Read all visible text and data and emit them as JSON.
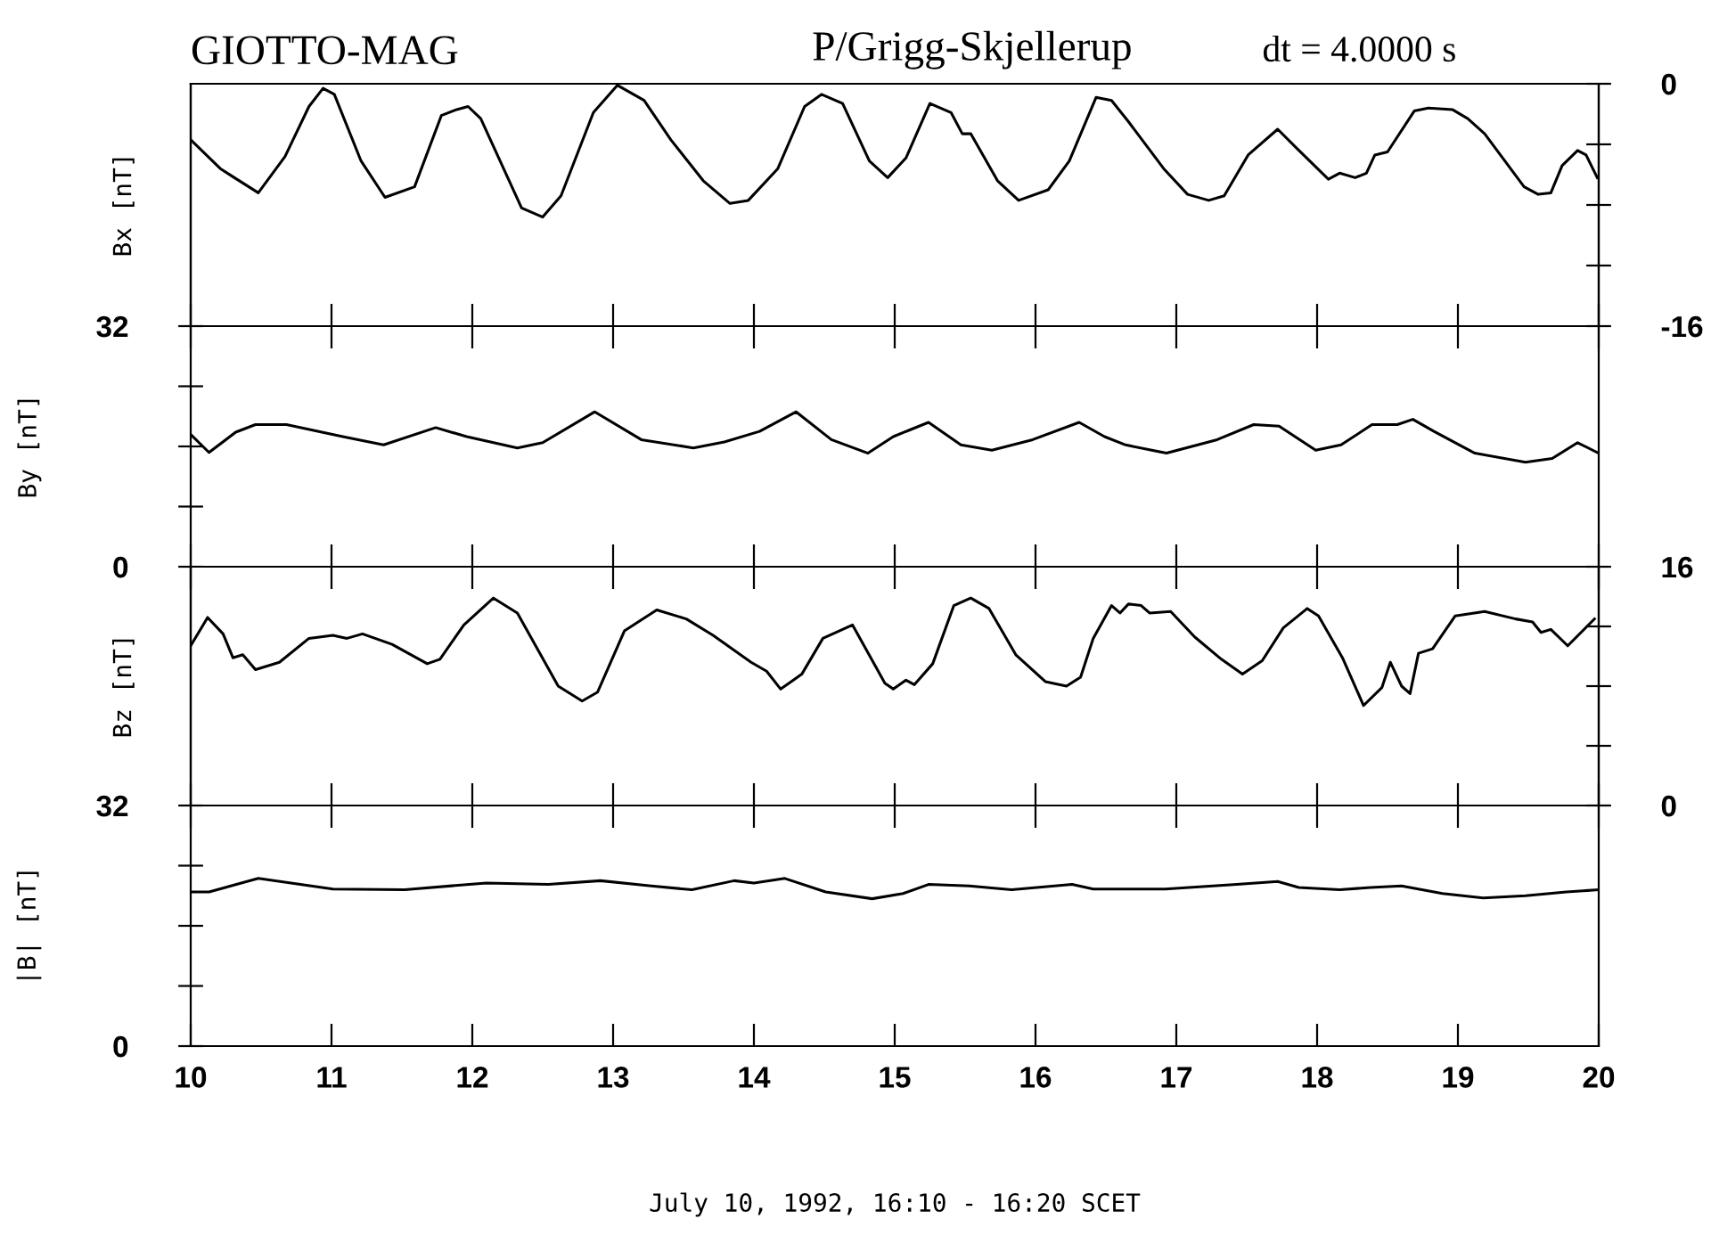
{
  "chart_data": [
    {
      "type": "line",
      "title": "GIOTTO-MAG",
      "subtitle": "P/Grigg-Skjellerup",
      "annotations": [
        "dt = 4.0000 s"
      ],
      "ylabel": "Bx [nT]",
      "tick_labels": "y",
      "xlim": [
        10,
        20
      ],
      "xticks": [
        10,
        11,
        12,
        13,
        14,
        15,
        16,
        17,
        18,
        19,
        20
      ],
      "y2lim": [
        -16,
        0
      ],
      "y2ticks": [
        -16,
        {
          "value": -12,
          "label": null
        },
        {
          "value": -8,
          "label": null
        },
        {
          "value": -4,
          "label": null
        },
        0
      ],
      "series": [
        {
          "color": "#000000",
          "axis": "y2",
          "x": [
            10.0,
            10.21,
            10.31,
            10.48,
            10.67,
            10.84,
            10.94,
            11.02,
            11.21,
            11.38,
            11.59,
            11.78,
            11.89,
            11.97,
            12.06,
            12.35,
            12.5,
            12.63,
            12.86,
            13.03,
            13.22,
            13.41,
            13.64,
            13.83,
            13.96,
            14.17,
            14.36,
            14.48,
            14.63,
            14.82,
            14.95,
            15.08,
            15.25,
            15.4,
            15.48,
            15.54,
            15.73,
            15.88,
            16.09,
            16.24,
            16.43,
            16.54,
            16.66,
            16.91,
            17.08,
            17.23,
            17.34,
            17.51,
            17.72,
            17.86,
            18.08,
            18.16,
            18.27,
            18.35,
            18.41,
            18.5,
            18.69,
            18.79,
            18.96,
            19.07,
            19.19,
            19.47,
            19.57,
            19.66,
            19.74,
            19.85,
            19.91,
            19.99
          ],
          "values": [
            -3.7,
            -5.6,
            -6.2,
            -7.2,
            -4.8,
            -1.5,
            -0.3,
            -0.7,
            -5.1,
            -7.5,
            -6.8,
            -2.1,
            -1.7,
            -1.5,
            -2.3,
            -8.2,
            -8.8,
            -7.4,
            -1.9,
            -0.1,
            -1.1,
            -3.7,
            -6.4,
            -7.9,
            -7.7,
            -5.6,
            -1.5,
            -0.7,
            -1.3,
            -5.1,
            -6.2,
            -4.9,
            -1.3,
            -1.9,
            -3.3,
            -3.3,
            -6.4,
            -7.7,
            -7.0,
            -5.1,
            -0.9,
            -1.1,
            -2.5,
            -5.6,
            -7.3,
            -7.7,
            -7.4,
            -4.7,
            -3.0,
            -4.3,
            -6.3,
            -5.9,
            -6.2,
            -5.9,
            -4.7,
            -4.5,
            -1.8,
            -1.6,
            -1.7,
            -2.3,
            -3.3,
            -6.8,
            -7.3,
            -7.2,
            -5.4,
            -4.4,
            -4.7,
            -6.2
          ]
        }
      ]
    },
    {
      "type": "line",
      "ylabel": "By [nT]",
      "tick_labels": "y",
      "xlim": [
        10,
        20
      ],
      "xticks": [
        10,
        11,
        12,
        13,
        14,
        15,
        16,
        17,
        18,
        19,
        20
      ],
      "ylim": [
        0,
        32
      ],
      "yticks": [
        0,
        {
          "value": 8,
          "label": null
        },
        {
          "value": 16,
          "label": null
        },
        {
          "value": 24,
          "label": null
        },
        32
      ],
      "series": [
        {
          "color": "#000000",
          "x": [
            10.0,
            10.13,
            10.32,
            10.46,
            10.68,
            11.08,
            11.37,
            11.74,
            11.96,
            12.32,
            12.5,
            12.87,
            13.2,
            13.57,
            13.79,
            14.04,
            14.3,
            14.55,
            14.81,
            14.99,
            15.24,
            15.47,
            15.69,
            15.98,
            16.31,
            16.49,
            16.64,
            16.93,
            17.29,
            17.55,
            17.73,
            17.99,
            18.17,
            18.39,
            18.57,
            18.68,
            18.83,
            19.12,
            19.48,
            19.67,
            19.85,
            20.0
          ],
          "values": [
            17.6,
            15.2,
            17.9,
            18.9,
            18.9,
            17.3,
            16.2,
            18.5,
            17.3,
            15.8,
            16.5,
            20.6,
            16.9,
            15.8,
            16.6,
            18.0,
            20.6,
            16.9,
            15.1,
            17.3,
            19.2,
            16.2,
            15.5,
            16.9,
            19.2,
            17.3,
            16.2,
            15.1,
            16.9,
            18.9,
            18.7,
            15.5,
            16.2,
            18.9,
            18.9,
            19.6,
            18.0,
            15.1,
            13.9,
            14.4,
            16.5,
            15.1
          ]
        }
      ]
    },
    {
      "type": "line",
      "ylabel": "Bz [nT]",
      "tick_labels": "y",
      "xlim": [
        10,
        20
      ],
      "xticks": [
        10,
        11,
        12,
        13,
        14,
        15,
        16,
        17,
        18,
        19,
        20
      ],
      "y2lim": [
        0,
        16
      ],
      "y2ticks": [
        0,
        {
          "value": 4,
          "label": null
        },
        {
          "value": 8,
          "label": null
        },
        {
          "value": 12,
          "label": null
        },
        16
      ],
      "series": [
        {
          "color": "#000000",
          "axis": "y2",
          "x": [
            10.0,
            10.12,
            10.23,
            10.3,
            10.37,
            10.46,
            10.63,
            10.84,
            11.01,
            11.11,
            11.22,
            11.43,
            11.68,
            11.77,
            11.94,
            12.15,
            12.32,
            12.61,
            12.78,
            12.89,
            13.08,
            13.31,
            13.52,
            13.71,
            13.98,
            14.09,
            14.19,
            14.34,
            14.49,
            14.7,
            14.93,
            14.99,
            15.08,
            15.14,
            15.27,
            15.42,
            15.54,
            15.67,
            15.86,
            16.07,
            16.22,
            16.32,
            16.41,
            16.54,
            16.6,
            16.66,
            16.75,
            16.81,
            16.96,
            17.13,
            17.32,
            17.47,
            17.61,
            17.76,
            17.93,
            18.01,
            18.18,
            18.33,
            18.46,
            18.52,
            18.6,
            18.66,
            18.72,
            18.82,
            18.98,
            19.19,
            19.41,
            19.53,
            19.59,
            19.66,
            19.78,
            19.97
          ],
          "values": [
            10.7,
            12.6,
            11.5,
            9.9,
            10.1,
            9.1,
            9.6,
            11.2,
            11.4,
            11.2,
            11.5,
            10.8,
            9.5,
            9.8,
            12.1,
            13.9,
            12.9,
            8.0,
            7.0,
            7.6,
            11.7,
            13.1,
            12.5,
            11.4,
            9.6,
            9.0,
            7.8,
            8.8,
            11.2,
            12.1,
            8.2,
            7.8,
            8.4,
            8.1,
            9.5,
            13.4,
            13.9,
            13.2,
            10.1,
            8.3,
            8.0,
            8.6,
            11.2,
            13.4,
            12.9,
            13.5,
            13.4,
            12.9,
            13.0,
            11.3,
            9.8,
            8.8,
            9.7,
            11.9,
            13.2,
            12.7,
            9.9,
            6.7,
            7.9,
            9.6,
            8.0,
            7.5,
            10.2,
            10.5,
            12.7,
            13.0,
            12.5,
            12.3,
            11.6,
            11.8,
            10.7,
            12.5
          ]
        }
      ]
    },
    {
      "type": "line",
      "ylabel": "|B| [nT]",
      "xlabel": "July 10, 1992, 16:10 - 16:20 SCET",
      "xlim": [
        10,
        20
      ],
      "xticks": [
        10,
        11,
        12,
        13,
        14,
        15,
        16,
        17,
        18,
        19,
        20
      ],
      "ylim": [
        0,
        32
      ],
      "yticks": [
        0,
        {
          "value": 8,
          "label": null
        },
        {
          "value": 16,
          "label": null
        },
        {
          "value": 24,
          "label": null
        },
        32
      ],
      "series": [
        {
          "color": "#000000",
          "x": [
            10.0,
            10.13,
            10.48,
            11.01,
            11.52,
            12.1,
            12.54,
            12.91,
            13.27,
            13.56,
            13.86,
            14.0,
            14.22,
            14.51,
            14.84,
            15.06,
            15.24,
            15.53,
            15.83,
            16.26,
            16.41,
            16.92,
            17.43,
            17.72,
            17.87,
            18.16,
            18.38,
            18.6,
            18.89,
            19.18,
            19.48,
            19.77,
            20.0
          ],
          "values": [
            20.5,
            20.5,
            22.3,
            20.9,
            20.8,
            21.7,
            21.5,
            22.0,
            21.3,
            20.8,
            22.0,
            21.7,
            22.3,
            20.5,
            19.6,
            20.3,
            21.5,
            21.3,
            20.8,
            21.5,
            20.9,
            20.9,
            21.5,
            21.9,
            21.1,
            20.8,
            21.1,
            21.3,
            20.3,
            19.7,
            20.0,
            20.5,
            20.8
          ]
        }
      ]
    }
  ]
}
